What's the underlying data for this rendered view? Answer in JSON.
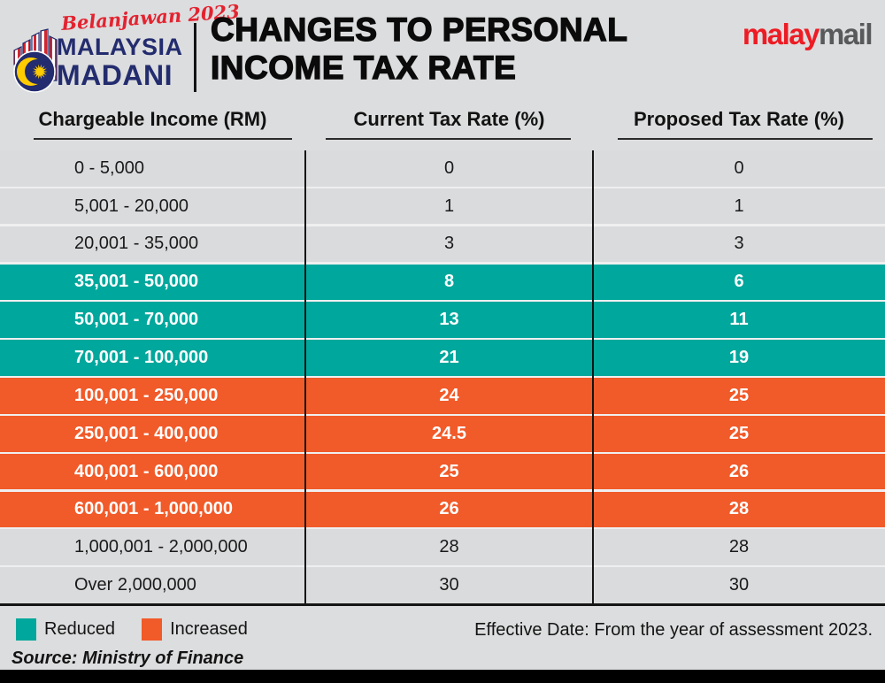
{
  "header": {
    "logo": {
      "script_line": "Belanjawan 2023",
      "line1": "MALAYSIA",
      "line2": "MADANI"
    },
    "title_line1": "CHANGES TO PERSONAL",
    "title_line2": "INCOME TAX RATE",
    "brand": {
      "part1": "malay",
      "part2": "mail"
    }
  },
  "table": {
    "columns": [
      "Chargeable Income (RM)",
      "Current Tax Rate (%)",
      "Proposed Tax Rate (%)"
    ],
    "rows": [
      {
        "income": "0 - 5,000",
        "current": "0",
        "proposed": "0",
        "status": "none"
      },
      {
        "income": "5,001 - 20,000",
        "current": "1",
        "proposed": "1",
        "status": "none"
      },
      {
        "income": "20,001 - 35,000",
        "current": "3",
        "proposed": "3",
        "status": "none"
      },
      {
        "income": "35,001 - 50,000",
        "current": "8",
        "proposed": "6",
        "status": "reduced"
      },
      {
        "income": "50,001 - 70,000",
        "current": "13",
        "proposed": "11",
        "status": "reduced"
      },
      {
        "income": "70,001 - 100,000",
        "current": "21",
        "proposed": "19",
        "status": "reduced"
      },
      {
        "income": "100,001 - 250,000",
        "current": "24",
        "proposed": "25",
        "status": "increased"
      },
      {
        "income": "250,001 - 400,000",
        "current": "24.5",
        "proposed": "25",
        "status": "increased"
      },
      {
        "income": "400,001 - 600,000",
        "current": "25",
        "proposed": "26",
        "status": "increased"
      },
      {
        "income": "600,001 - 1,000,000",
        "current": "26",
        "proposed": "28",
        "status": "increased"
      },
      {
        "income": "1,000,001 - 2,000,000",
        "current": "28",
        "proposed": "28",
        "status": "none"
      },
      {
        "income": "Over 2,000,000",
        "current": "30",
        "proposed": "30",
        "status": "none"
      }
    ]
  },
  "legend": [
    {
      "label": "Reduced",
      "color": "#00a79c"
    },
    {
      "label": "Increased",
      "color": "#f15a29"
    }
  ],
  "footer": {
    "effective_date": "Effective Date: From the year of assessment 2023.",
    "source": "Source: Ministry of Finance"
  },
  "colors": {
    "reduced_teal": "#00a79c",
    "increased_orange": "#f15a29",
    "logo_navy": "#232c6e",
    "logo_red": "#e32330",
    "brand_red": "#ed1c24",
    "brand_gray": "#58595b",
    "background_gray": "#dcddde"
  },
  "chart_data": {
    "type": "table",
    "title": "Changes to Personal Income Tax Rate",
    "columns": [
      "Chargeable Income (RM)",
      "Current Tax Rate (%)",
      "Proposed Tax Rate (%)"
    ],
    "rows": [
      [
        "0 - 5,000",
        0,
        0,
        "unchanged"
      ],
      [
        "5,001 - 20,000",
        1,
        1,
        "unchanged"
      ],
      [
        "20,001 - 35,000",
        3,
        3,
        "unchanged"
      ],
      [
        "35,001 - 50,000",
        8,
        6,
        "reduced"
      ],
      [
        "50,001 - 70,000",
        13,
        11,
        "reduced"
      ],
      [
        "70,001 - 100,000",
        21,
        19,
        "reduced"
      ],
      [
        "100,001 - 250,000",
        24,
        25,
        "increased"
      ],
      [
        "250,001 - 400,000",
        24.5,
        25,
        "increased"
      ],
      [
        "400,001 - 600,000",
        25,
        26,
        "increased"
      ],
      [
        "600,001 - 1,000,000",
        26,
        28,
        "increased"
      ],
      [
        "1,000,001 - 2,000,000",
        28,
        28,
        "unchanged"
      ],
      [
        "Over 2,000,000",
        30,
        30,
        "unchanged"
      ]
    ],
    "legend": [
      {
        "label": "Reduced",
        "color": "#00a79c"
      },
      {
        "label": "Increased",
        "color": "#f15a29"
      }
    ],
    "annotations": [
      "Effective Date: From the year of assessment 2023.",
      "Source: Ministry of Finance"
    ]
  }
}
